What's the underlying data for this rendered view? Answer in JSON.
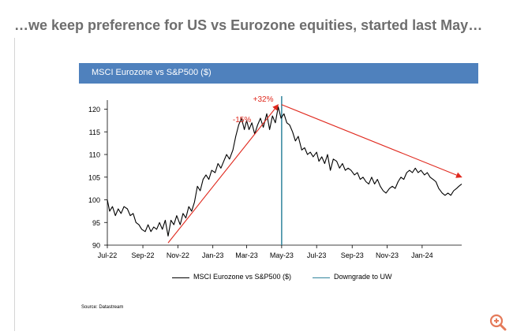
{
  "slide": {
    "headline": "…we keep preference for US vs Eurozone equities, started last May…",
    "chart_banner": "MSCI Eurozone vs S&P500 ($)",
    "source_note": "Source: Datastream",
    "zoom_icon": "zoom-in-icon"
  },
  "colors": {
    "banner": "#4f81bd",
    "series": "#000000",
    "downgrade_line": "#31859c",
    "annotation": "#e0291e",
    "headline": "#6e6e6e"
  },
  "chart_data": {
    "type": "line",
    "title": "MSCI Eurozone vs S&P500 ($)",
    "xlabel": "",
    "ylabel": "",
    "x_ticks": [
      "Jul-22",
      "Sep-22",
      "Nov-22",
      "Jan-23",
      "Mar-23",
      "May-23",
      "Jul-23",
      "Sep-23",
      "Nov-23",
      "Jan-24"
    ],
    "x_tick_dates": [
      "2022-07-01",
      "2022-09-01",
      "2022-11-01",
      "2023-01-01",
      "2023-03-01",
      "2023-05-01",
      "2023-07-01",
      "2023-09-01",
      "2023-11-01",
      "2024-01-01"
    ],
    "x_range": [
      "2022-07-01",
      "2024-03-10"
    ],
    "y_ticks": [
      90,
      95,
      100,
      105,
      110,
      115,
      120
    ],
    "ylim": [
      90,
      122
    ],
    "grid": false,
    "legend_position": "bottom",
    "series": [
      {
        "name": "MSCI Eurozone vs S&P500 ($)",
        "points": [
          [
            "2022-07-01",
            100
          ],
          [
            "2022-07-05",
            97.5
          ],
          [
            "2022-07-10",
            98.5
          ],
          [
            "2022-07-15",
            96.5
          ],
          [
            "2022-07-20",
            98
          ],
          [
            "2022-07-25",
            97
          ],
          [
            "2022-07-30",
            98.5
          ],
          [
            "2022-08-05",
            98
          ],
          [
            "2022-08-10",
            96.5
          ],
          [
            "2022-08-15",
            97
          ],
          [
            "2022-08-20",
            95
          ],
          [
            "2022-08-25",
            94.5
          ],
          [
            "2022-08-30",
            93.5
          ],
          [
            "2022-09-05",
            93
          ],
          [
            "2022-09-10",
            94.5
          ],
          [
            "2022-09-15",
            93
          ],
          [
            "2022-09-20",
            94
          ],
          [
            "2022-09-25",
            93.5
          ],
          [
            "2022-09-30",
            95
          ],
          [
            "2022-10-05",
            93.5
          ],
          [
            "2022-10-10",
            95.5
          ],
          [
            "2022-10-15",
            92
          ],
          [
            "2022-10-20",
            95.5
          ],
          [
            "2022-10-25",
            94.5
          ],
          [
            "2022-10-30",
            96.5
          ],
          [
            "2022-11-05",
            94.5
          ],
          [
            "2022-11-10",
            97
          ],
          [
            "2022-11-15",
            96
          ],
          [
            "2022-11-20",
            98.5
          ],
          [
            "2022-11-25",
            97.5
          ],
          [
            "2022-11-30",
            99.5
          ],
          [
            "2022-12-05",
            103
          ],
          [
            "2022-12-10",
            102
          ],
          [
            "2022-12-15",
            104.5
          ],
          [
            "2022-12-20",
            105.5
          ],
          [
            "2022-12-25",
            104.5
          ],
          [
            "2022-12-30",
            106.5
          ],
          [
            "2023-01-05",
            106
          ],
          [
            "2023-01-10",
            108
          ],
          [
            "2023-01-15",
            107
          ],
          [
            "2023-01-20",
            108.5
          ],
          [
            "2023-01-25",
            110
          ],
          [
            "2023-01-30",
            109
          ],
          [
            "2023-02-05",
            111
          ],
          [
            "2023-02-10",
            114
          ],
          [
            "2023-02-15",
            116.5
          ],
          [
            "2023-02-20",
            118
          ],
          [
            "2023-02-25",
            115.5
          ],
          [
            "2023-03-01",
            117.5
          ],
          [
            "2023-03-05",
            115.5
          ],
          [
            "2023-03-10",
            117
          ],
          [
            "2023-03-15",
            114.5
          ],
          [
            "2023-03-20",
            116.5
          ],
          [
            "2023-03-25",
            118
          ],
          [
            "2023-03-30",
            116
          ],
          [
            "2023-04-05",
            119
          ],
          [
            "2023-04-10",
            115.5
          ],
          [
            "2023-04-15",
            118.5
          ],
          [
            "2023-04-20",
            117
          ],
          [
            "2023-04-25",
            120.5
          ],
          [
            "2023-04-30",
            118
          ],
          [
            "2023-05-05",
            119
          ],
          [
            "2023-05-10",
            117
          ],
          [
            "2023-05-15",
            116.5
          ],
          [
            "2023-05-20",
            115
          ],
          [
            "2023-05-25",
            113
          ],
          [
            "2023-05-30",
            114
          ],
          [
            "2023-06-05",
            111
          ],
          [
            "2023-06-10",
            111.5
          ],
          [
            "2023-06-15",
            110
          ],
          [
            "2023-06-20",
            110.5
          ],
          [
            "2023-06-25",
            109.5
          ],
          [
            "2023-07-01",
            110.5
          ],
          [
            "2023-07-05",
            108.5
          ],
          [
            "2023-07-10",
            109.5
          ],
          [
            "2023-07-15",
            108
          ],
          [
            "2023-07-20",
            110
          ],
          [
            "2023-07-25",
            106.5
          ],
          [
            "2023-07-30",
            109
          ],
          [
            "2023-08-05",
            108.5
          ],
          [
            "2023-08-10",
            107
          ],
          [
            "2023-08-15",
            108
          ],
          [
            "2023-08-20",
            106.5
          ],
          [
            "2023-08-25",
            107
          ],
          [
            "2023-08-30",
            106.5
          ],
          [
            "2023-09-05",
            105.5
          ],
          [
            "2023-09-10",
            106
          ],
          [
            "2023-09-15",
            104.5
          ],
          [
            "2023-09-20",
            105
          ],
          [
            "2023-09-25",
            104
          ],
          [
            "2023-09-30",
            103.5
          ],
          [
            "2023-10-05",
            105
          ],
          [
            "2023-10-10",
            103.5
          ],
          [
            "2023-10-15",
            104.5
          ],
          [
            "2023-10-20",
            103
          ],
          [
            "2023-10-25",
            102
          ],
          [
            "2023-10-30",
            101.5
          ],
          [
            "2023-11-05",
            102.5
          ],
          [
            "2023-11-10",
            103
          ],
          [
            "2023-11-15",
            102.5
          ],
          [
            "2023-11-20",
            104
          ],
          [
            "2023-11-25",
            105
          ],
          [
            "2023-11-30",
            104.5
          ],
          [
            "2023-12-05",
            106
          ],
          [
            "2023-12-10",
            106.5
          ],
          [
            "2023-12-15",
            106
          ],
          [
            "2023-12-20",
            107
          ],
          [
            "2023-12-25",
            106
          ],
          [
            "2023-12-30",
            106.5
          ],
          [
            "2024-01-05",
            105.5
          ],
          [
            "2024-01-10",
            106
          ],
          [
            "2024-01-15",
            105
          ],
          [
            "2024-01-20",
            104.5
          ],
          [
            "2024-01-25",
            104
          ],
          [
            "2024-01-30",
            102.5
          ],
          [
            "2024-02-05",
            101.5
          ],
          [
            "2024-02-10",
            101
          ],
          [
            "2024-02-15",
            101.5
          ],
          [
            "2024-02-20",
            101
          ],
          [
            "2024-02-25",
            102
          ],
          [
            "2024-03-01",
            102.5
          ],
          [
            "2024-03-05",
            103
          ],
          [
            "2024-03-10",
            103.5
          ]
        ]
      },
      {
        "name": "Downgrade to UW",
        "type": "vertical_line",
        "x": "2023-05-01"
      }
    ],
    "annotations": [
      {
        "text": "+32%",
        "type": "arrow",
        "from": [
          "2022-10-15",
          90.5
        ],
        "to": [
          "2023-04-25",
          121
        ]
      },
      {
        "text": "-15%",
        "type": "arrow",
        "from": [
          "2023-05-01",
          121
        ],
        "to": [
          "2024-03-10",
          105
        ]
      }
    ]
  }
}
